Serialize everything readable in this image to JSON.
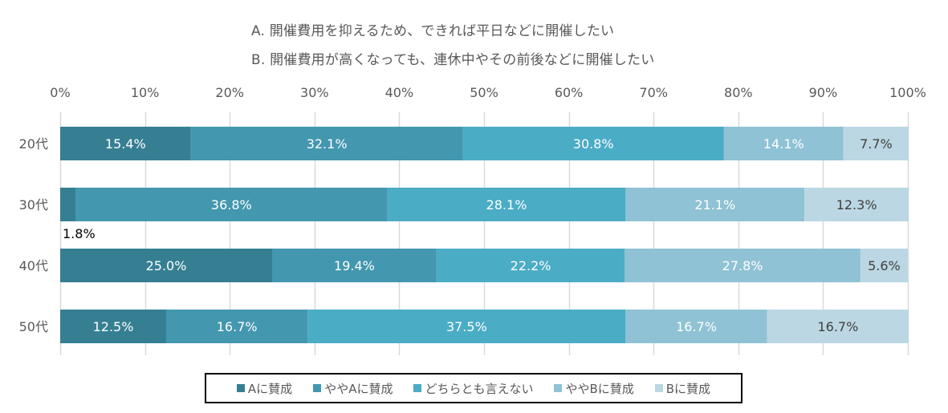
{
  "chart_data": {
    "type": "bar",
    "orientation": "horizontal",
    "stacked": "100%",
    "title_lines": [
      "A. 開催費用を抑えるため、できれば平日などに開催したい",
      "B. 開催費用が高くなっても、連休中やその前後などに開催したい"
    ],
    "categories": [
      "20代",
      "30代",
      "40代",
      "50代"
    ],
    "x_ticks": [
      "0%",
      "10%",
      "20%",
      "30%",
      "40%",
      "50%",
      "60%",
      "70%",
      "80%",
      "90%",
      "100%"
    ],
    "xlim": [
      0,
      100
    ],
    "grid": true,
    "legend_position": "bottom",
    "series": [
      {
        "name": "Aに賛成",
        "color": "#367F93",
        "label_color": "#ffffff",
        "values": [
          15.4,
          1.8,
          25.0,
          12.5
        ],
        "labels": [
          "15.4%",
          "1.8%",
          "25.0%",
          "12.5%"
        ]
      },
      {
        "name": "ややAに賛成",
        "color": "#4397AF",
        "label_color": "#ffffff",
        "values": [
          32.1,
          36.8,
          19.4,
          16.7
        ],
        "labels": [
          "32.1%",
          "36.8%",
          "19.4%",
          "16.7%"
        ]
      },
      {
        "name": "どちらとも言えない",
        "color": "#4BACC6",
        "label_color": "#ffffff",
        "values": [
          30.8,
          28.1,
          22.2,
          37.5
        ],
        "labels": [
          "30.8%",
          "28.1%",
          "22.2%",
          "37.5%"
        ]
      },
      {
        "name": "ややBに賛成",
        "color": "#8FC2D4",
        "label_color": "#ffffff",
        "values": [
          14.1,
          21.1,
          27.8,
          16.7
        ],
        "labels": [
          "14.1%",
          "21.1%",
          "27.8%",
          "16.7%"
        ]
      },
      {
        "name": "Bに賛成",
        "color": "#BBD7E3",
        "label_color": "#404040",
        "values": [
          7.7,
          12.3,
          5.6,
          16.7
        ],
        "labels": [
          "7.7%",
          "12.3%",
          "5.6%",
          "16.7%"
        ]
      }
    ]
  }
}
